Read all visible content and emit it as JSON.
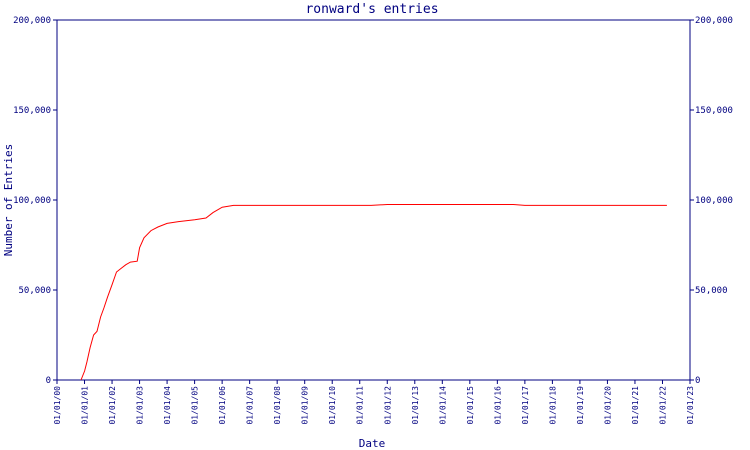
{
  "chart_data": {
    "type": "line",
    "title": "ronward's entries",
    "xlabel": "Date",
    "ylabel": "Number of Entries",
    "ylim": [
      0,
      200000
    ],
    "xlim": [
      "2000-01-01",
      "2023-01-01"
    ],
    "y_ticks": [
      0,
      50000,
      100000,
      150000,
      200000
    ],
    "y_tick_labels": [
      "0",
      "50,000",
      "100,000",
      "150,000",
      "200,000"
    ],
    "y_tick_labels_right": [
      "0",
      "50,000",
      "100,000",
      "150,000",
      "200,000"
    ],
    "x_tick_labels": [
      "01/01/00",
      "01/01/01",
      "01/01/02",
      "01/01/03",
      "01/01/04",
      "01/01/05",
      "01/01/06",
      "01/01/07",
      "01/01/08",
      "01/01/09",
      "01/01/10",
      "01/01/11",
      "01/01/12",
      "01/01/13",
      "01/01/14",
      "01/01/15",
      "01/01/16",
      "01/01/17",
      "01/01/18",
      "01/01/19",
      "01/01/20",
      "01/01/21",
      "01/01/22",
      "01/01/23"
    ],
    "grid": false,
    "legend": "none",
    "colors": {
      "axis": "#000080",
      "series": "#ff0000",
      "background": "#ffffff"
    },
    "series": [
      {
        "x": [
          "2000-11-15",
          "2001-01-01",
          "2001-02-01",
          "2001-03-15",
          "2001-05-01",
          "2001-06-15",
          "2001-08-01",
          "2001-09-15",
          "2001-11-01",
          "2002-01-01",
          "2002-03-01",
          "2002-05-01",
          "2002-07-01",
          "2002-09-01",
          "2002-12-01",
          "2003-01-01",
          "2003-03-01",
          "2003-06-01",
          "2003-09-01",
          "2004-01-01",
          "2004-06-01",
          "2005-01-01",
          "2005-06-01",
          "2005-09-01",
          "2006-01-01",
          "2006-06-01",
          "2007-01-01",
          "2008-01-01",
          "2009-01-01",
          "2010-01-01",
          "2011-01-01",
          "2011-06-01",
          "2012-01-01",
          "2013-01-01",
          "2014-01-01",
          "2015-01-01",
          "2016-01-01",
          "2016-08-01",
          "2017-01-01",
          "2018-01-01",
          "2019-01-01",
          "2020-01-01",
          "2021-01-01",
          "2022-01-01",
          "2022-03-01"
        ],
        "y": [
          0,
          5000,
          10000,
          18000,
          25000,
          27000,
          35000,
          40000,
          46000,
          53000,
          60000,
          62000,
          64000,
          65500,
          66000,
          73500,
          79000,
          83000,
          85000,
          87000,
          88000,
          89000,
          90000,
          93000,
          96000,
          97000,
          97000,
          97000,
          97000,
          97000,
          97000,
          97000,
          97500,
          97500,
          97500,
          97500,
          97500,
          97500,
          97000,
          97000,
          97000,
          97000,
          97000,
          97000,
          97000
        ]
      }
    ]
  }
}
